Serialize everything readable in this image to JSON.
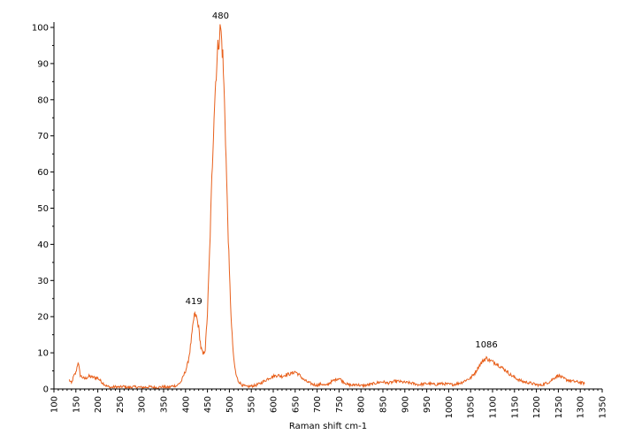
{
  "chart_data": {
    "type": "line",
    "title": "",
    "xlabel": "Raman shift cm-1",
    "ylabel": "",
    "xlim": [
      100,
      1350
    ],
    "ylim": [
      0,
      100
    ],
    "x_ticks": [
      "100",
      "150",
      "200",
      "250",
      "300",
      "350",
      "400",
      "450",
      "500",
      "550",
      "600",
      "650",
      "700",
      "750",
      "800",
      "850",
      "900",
      "950",
      "1000",
      "1050",
      "1100",
      "1150",
      "1200",
      "1250",
      "1300",
      "1350"
    ],
    "y_ticks": [
      "0",
      "10",
      "20",
      "30",
      "40",
      "50",
      "60",
      "70",
      "80",
      "90",
      "100"
    ],
    "grid": false,
    "legend": "none",
    "line_color": "#e8601c",
    "annotations": [
      {
        "text": "480",
        "x": 480,
        "y": 100
      },
      {
        "text": "419",
        "x": 419,
        "y": 21
      },
      {
        "text": "1086",
        "x": 1086,
        "y": 9
      }
    ],
    "series": [
      {
        "x": [
          135,
          140,
          145,
          150,
          155,
          160,
          165,
          170,
          180,
          190,
          200,
          210,
          220,
          230,
          240,
          250,
          260,
          270,
          280,
          290,
          300,
          310,
          320,
          330,
          340,
          350,
          360,
          370,
          380,
          390,
          395,
          400,
          405,
          410,
          415,
          420,
          425,
          430,
          435,
          440,
          445,
          450,
          455,
          460,
          465,
          470,
          475,
          480,
          485,
          490,
          495,
          500,
          505,
          510,
          515,
          520,
          530,
          540,
          550,
          560,
          570,
          580,
          590,
          600,
          610,
          620,
          630,
          640,
          650,
          660,
          670,
          680,
          690,
          700,
          710,
          720,
          730,
          740,
          750,
          760,
          770,
          780,
          790,
          800,
          810,
          820,
          830,
          840,
          850,
          860,
          870,
          880,
          890,
          900,
          910,
          920,
          930,
          940,
          950,
          960,
          970,
          980,
          990,
          1000,
          1010,
          1020,
          1030,
          1040,
          1050,
          1060,
          1070,
          1080,
          1086,
          1090,
          1100,
          1110,
          1120,
          1130,
          1140,
          1150,
          1160,
          1170,
          1180,
          1190,
          1200,
          1210,
          1220,
          1230,
          1240,
          1250,
          1260,
          1270,
          1280,
          1290,
          1300,
          1310
        ],
        "y": [
          2.5,
          1.5,
          3.5,
          4.5,
          7.5,
          3.8,
          3.2,
          2.8,
          3.5,
          3.2,
          3.0,
          1.8,
          0.8,
          0.4,
          0.6,
          0.5,
          0.7,
          0.4,
          0.6,
          0.5,
          0.4,
          0.5,
          0.6,
          0.4,
          0.5,
          0.6,
          0.4,
          0.8,
          0.9,
          2.0,
          3.5,
          5.0,
          7.0,
          10.5,
          15.5,
          20.5,
          20.0,
          17.0,
          11.5,
          9.5,
          11.0,
          21.0,
          38.0,
          58.0,
          76.0,
          88.0,
          96.0,
          100.0,
          92.0,
          75.0,
          52.0,
          32.0,
          17.0,
          8.0,
          4.0,
          2.2,
          1.0,
          0.6,
          0.8,
          1.0,
          1.5,
          2.2,
          3.0,
          3.5,
          3.8,
          3.5,
          4.0,
          4.2,
          4.8,
          3.8,
          2.5,
          1.8,
          1.3,
          1.0,
          1.4,
          0.9,
          1.8,
          2.5,
          3.0,
          2.0,
          1.2,
          1.0,
          1.3,
          0.9,
          1.0,
          1.2,
          1.5,
          1.8,
          2.0,
          1.6,
          1.8,
          2.2,
          2.0,
          1.8,
          1.7,
          1.5,
          1.2,
          1.3,
          1.5,
          1.4,
          1.2,
          1.5,
          1.4,
          1.3,
          1.2,
          1.5,
          1.8,
          2.5,
          3.0,
          4.5,
          6.5,
          8.0,
          8.5,
          8.2,
          7.5,
          7.0,
          6.0,
          5.2,
          4.0,
          3.2,
          2.5,
          2.0,
          1.8,
          1.5,
          1.2,
          1.0,
          1.5,
          2.0,
          3.0,
          3.8,
          3.0,
          2.5,
          2.2,
          2.0,
          1.8,
          1.5
        ]
      }
    ]
  }
}
